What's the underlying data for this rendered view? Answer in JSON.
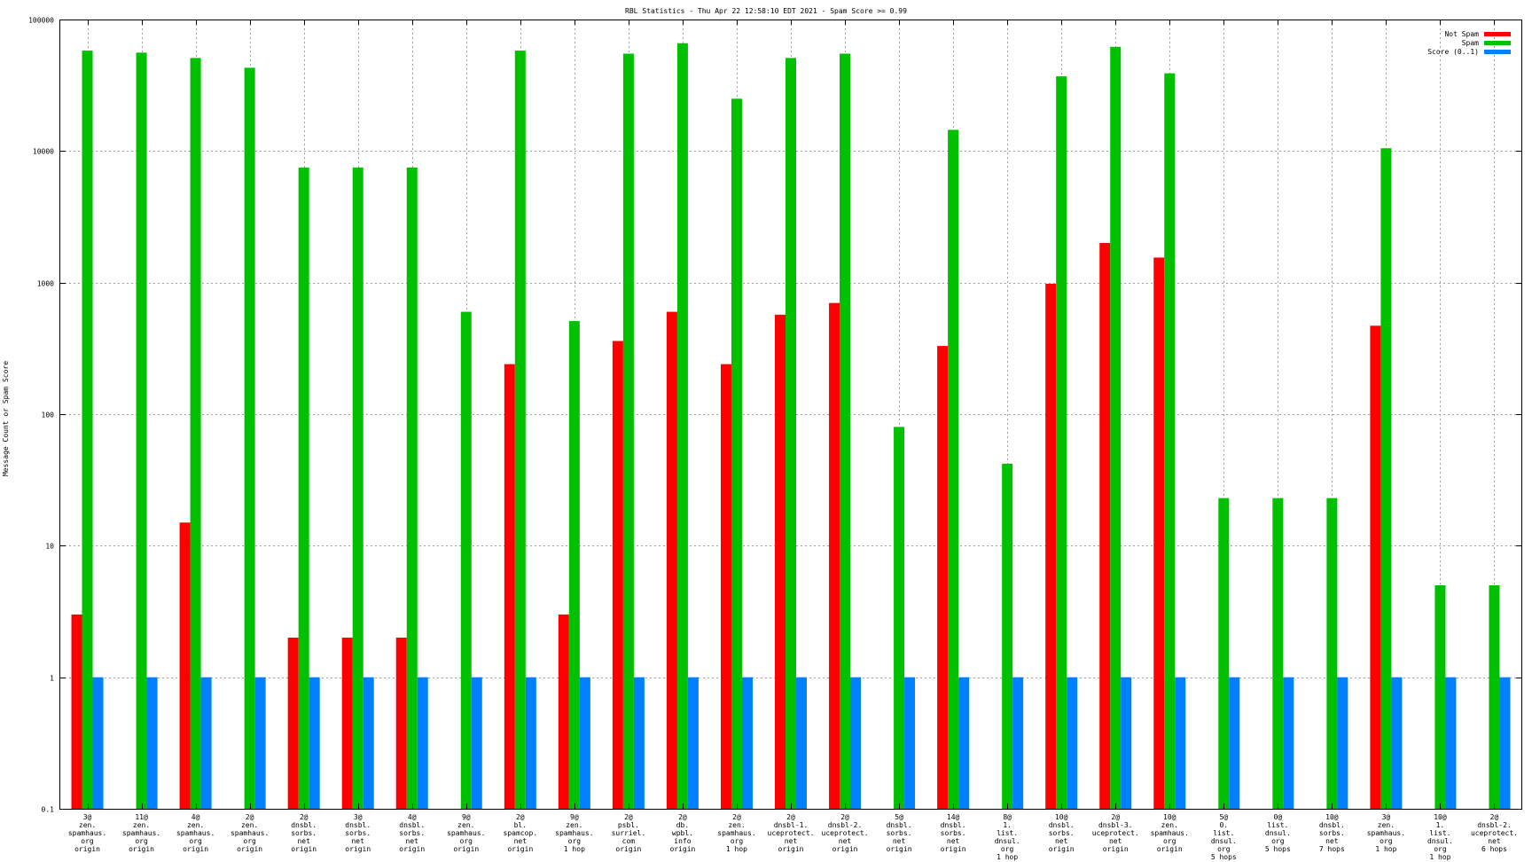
{
  "chart_data": {
    "type": "bar",
    "title": "RBL Statistics - Thu Apr 22 12:58:10 EDT 2021 - Spam Score >= 0.99",
    "xlabel": "",
    "ylabel": "Message Count or Spam Score",
    "yscale": "log",
    "ylim": [
      0.1,
      100000
    ],
    "yticks": [
      "0.1",
      "1",
      "10",
      "100",
      "1000",
      "10000",
      "100000"
    ],
    "grid": true,
    "legend_position": "top-right",
    "categories": [
      [
        "3@",
        "zen.",
        "spamhaus.",
        "org",
        "origin"
      ],
      [
        "11@",
        "zen.",
        "spamhaus.",
        "org",
        "origin"
      ],
      [
        "4@",
        "zen.",
        "spamhaus.",
        "org",
        "origin"
      ],
      [
        "2@",
        "zen.",
        "spamhaus.",
        "org",
        "origin"
      ],
      [
        "2@",
        "dnsbl.",
        "sorbs.",
        "net",
        "origin"
      ],
      [
        "3@",
        "dnsbl.",
        "sorbs.",
        "net",
        "origin"
      ],
      [
        "4@",
        "dnsbl.",
        "sorbs.",
        "net",
        "origin"
      ],
      [
        "9@",
        "zen.",
        "spamhaus.",
        "org",
        "origin"
      ],
      [
        "2@",
        "bl.",
        "spamcop.",
        "net",
        "origin"
      ],
      [
        "9@",
        "zen.",
        "spamhaus.",
        "org",
        "1 hop"
      ],
      [
        "2@",
        "psbl.",
        "surriel.",
        "com",
        "origin"
      ],
      [
        "2@",
        "db.",
        "wpbl.",
        "info",
        "origin"
      ],
      [
        "2@",
        "zen.",
        "spamhaus.",
        "org",
        "1 hop"
      ],
      [
        "2@",
        "dnsbl-1.",
        "uceprotect.",
        "net",
        "origin"
      ],
      [
        "2@",
        "dnsbl-2.",
        "uceprotect.",
        "net",
        "origin"
      ],
      [
        "5@",
        "dnsbl.",
        "sorbs.",
        "net",
        "origin"
      ],
      [
        "14@",
        "dnsbl.",
        "sorbs.",
        "net",
        "origin"
      ],
      [
        "8@",
        "1.",
        "list.",
        "dnsul.",
        "org",
        "1 hop"
      ],
      [
        "10@",
        "dnsbl.",
        "sorbs.",
        "net",
        "origin"
      ],
      [
        "2@",
        "dnsbl-3.",
        "uceprotect.",
        "net",
        "origin"
      ],
      [
        "10@",
        "zen.",
        "spamhaus.",
        "org",
        "origin"
      ],
      [
        "5@",
        "0.",
        "list.",
        "dnsul.",
        "org",
        "5 hops"
      ],
      [
        "0@",
        "list.",
        "dnsul.",
        "org",
        "5 hops"
      ],
      [
        "10@",
        "dnsbl.",
        "sorbs.",
        "net",
        "7 hops"
      ],
      [
        "3@",
        "zen.",
        "spamhaus.",
        "org",
        "1 hop"
      ],
      [
        "10@",
        "1.",
        "list.",
        "dnsul.",
        "org",
        "1 hop"
      ],
      [
        "2@",
        "dnsbl-2.",
        "uceprotect.",
        "net",
        "6 hops"
      ]
    ],
    "series": [
      {
        "name": "Not Spam",
        "color": "#ff0000",
        "values": [
          3,
          0,
          15,
          0,
          2,
          2,
          2,
          0,
          240,
          3,
          360,
          600,
          240,
          570,
          700,
          0,
          330,
          0,
          980,
          2000,
          1550,
          0,
          0,
          0,
          470,
          0,
          0
        ]
      },
      {
        "name": "Spam",
        "color": "#00c000",
        "values": [
          58000,
          56000,
          51000,
          43000,
          7500,
          7500,
          7500,
          600,
          58000,
          510,
          55000,
          66000,
          25000,
          51000,
          55000,
          80,
          14500,
          42,
          37000,
          62000,
          39000,
          23,
          23,
          23,
          10500,
          5,
          5
        ]
      },
      {
        "name": "Score (0..1)",
        "color": "#0080ff",
        "values": [
          1,
          1,
          1,
          1,
          1,
          1,
          1,
          1,
          1,
          1,
          1,
          1,
          1,
          1,
          1,
          1,
          1,
          1,
          1,
          1,
          1,
          1,
          1,
          1,
          1,
          1,
          1
        ]
      }
    ]
  }
}
